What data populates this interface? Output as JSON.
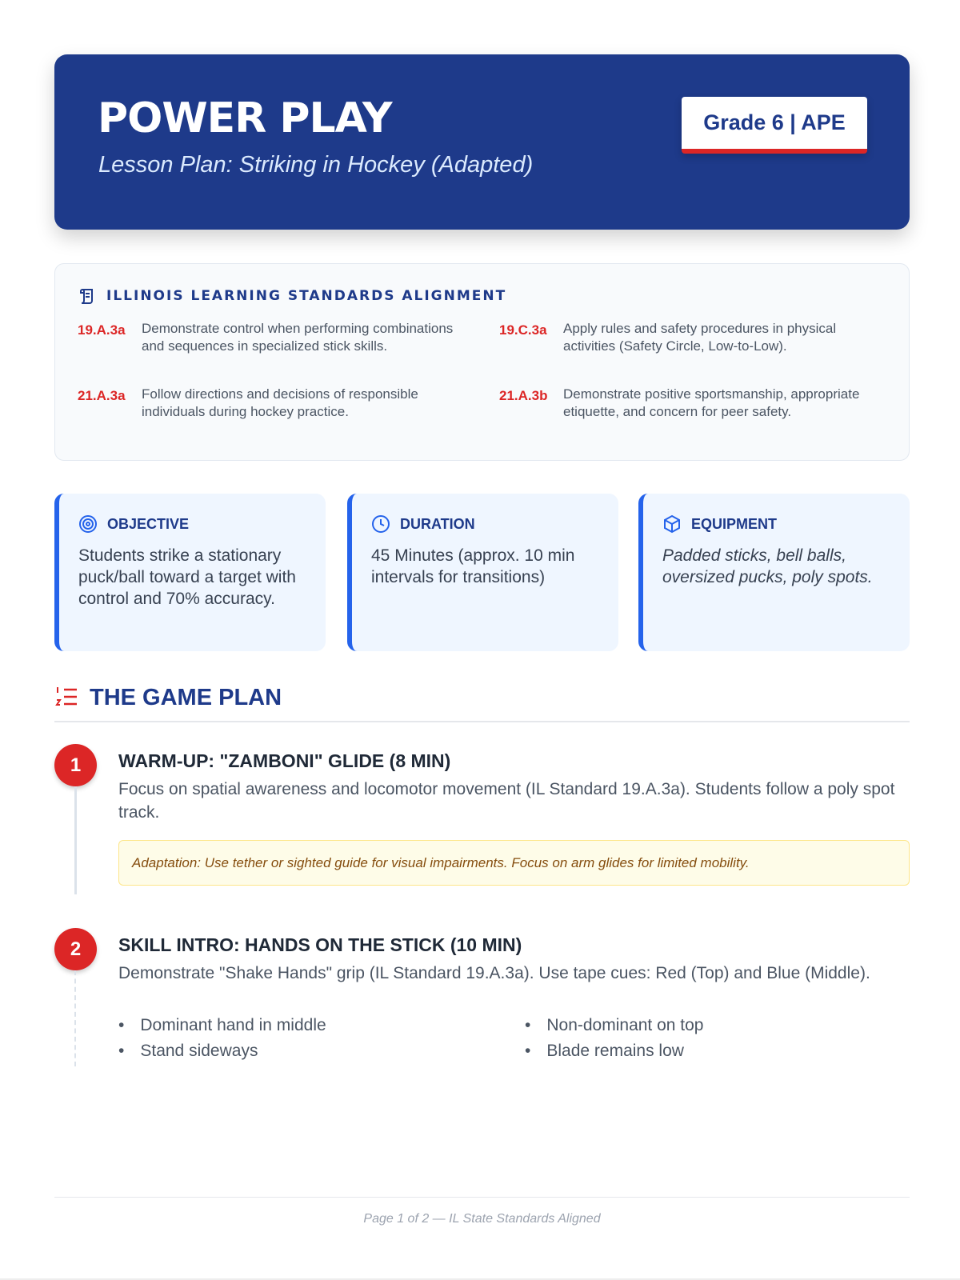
{
  "header": {
    "title": "POWER PLAY",
    "subtitle": "Lesson Plan: Striking in Hockey (Adapted)",
    "badge": "Grade 6 | APE"
  },
  "standards": {
    "heading": "ILLINOIS LEARNING STANDARDS ALIGNMENT",
    "items": [
      {
        "code": "19.A.3a",
        "text": "Demonstrate control when performing combinations and sequences in specialized stick skills."
      },
      {
        "code": "19.C.3a",
        "text": "Apply rules and safety procedures in physical activities (Safety Circle, Low-to-Low)."
      },
      {
        "code": "21.A.3a",
        "text": "Follow directions and decisions of responsible individuals during hockey practice."
      },
      {
        "code": "21.A.3b",
        "text": "Demonstrate positive sportsmanship, appropriate etiquette, and concern for peer safety."
      }
    ]
  },
  "cards": [
    {
      "title": "OBJECTIVE",
      "icon": "target-icon",
      "body": "Students strike a stationary puck/ball toward a target with control and 70% accuracy."
    },
    {
      "title": "DURATION",
      "icon": "clock-icon",
      "body": "45 Minutes (approx. 10 min intervals for transitions)"
    },
    {
      "title": "EQUIPMENT",
      "icon": "box-icon",
      "body": "Padded sticks, bell balls, oversized pucks, poly spots."
    }
  ],
  "game_plan": {
    "heading": "THE GAME PLAN",
    "steps": [
      {
        "number": "1",
        "title": "WARM-UP: \"ZAMBONI\" GLIDE (8 MIN)",
        "text": "Focus on spatial awareness and locomotor movement (IL Standard 19.A.3a). Students follow a poly spot track.",
        "adaptation": "Adaptation: Use tether or sighted guide for visual impairments. Focus on arm glides for limited mobility."
      },
      {
        "number": "2",
        "title": "SKILL INTRO: HANDS ON THE STICK (10 MIN)",
        "text": "Demonstrate \"Shake Hands\" grip (IL Standard 19.A.3a). Use tape cues: Red (Top) and Blue (Middle).",
        "bullets": [
          "Dominant hand in middle",
          "Non-dominant on top",
          "Stand sideways",
          "Blade remains low"
        ]
      }
    ]
  },
  "footer": "Page 1 of 2 — IL State Standards Aligned",
  "colors": {
    "primary": "#1e3a8a",
    "accent": "#dc2626",
    "card_border": "#2563eb"
  }
}
